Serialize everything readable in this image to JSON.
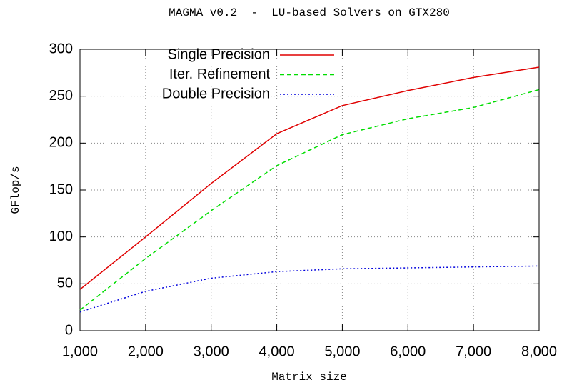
{
  "chart_data": {
    "type": "line",
    "title": "MAGMA v0.2  -  LU-based Solvers on GTX280",
    "x_label": "Matrix size",
    "y_label": "GFlop/s",
    "x": [
      1000,
      2000,
      3000,
      4000,
      5000,
      6000,
      7000,
      8000
    ],
    "series": [
      {
        "name": "Single Precision",
        "color": "#e00000",
        "dash": "none",
        "values": [
          44,
          100,
          157,
          210,
          240,
          256,
          270,
          281
        ]
      },
      {
        "name": "Iter. Refinement",
        "color": "#00dd00",
        "dash": "6 4",
        "values": [
          22,
          77,
          128,
          176,
          209,
          226,
          238,
          257
        ]
      },
      {
        "name": "Double Precision",
        "color": "#0000dd",
        "dash": "2 3",
        "values": [
          20,
          42,
          56,
          63,
          66,
          67,
          68,
          69
        ]
      }
    ],
    "xlim": [
      1000,
      8000
    ],
    "xticks": [
      {
        "value": 1000,
        "label": "1,000"
      },
      {
        "value": 2000,
        "label": "2,000"
      },
      {
        "value": 3000,
        "label": "3,000"
      },
      {
        "value": 4000,
        "label": "4,000"
      },
      {
        "value": 5000,
        "label": "5,000"
      },
      {
        "value": 6000,
        "label": "6,000"
      },
      {
        "value": 7000,
        "label": "7,000"
      },
      {
        "value": 8000,
        "label": "8,000"
      }
    ],
    "ylim": [
      0,
      300
    ],
    "yticks": [
      0,
      50,
      100,
      150,
      200,
      250,
      300
    ],
    "grid": true,
    "legend": "top-left"
  }
}
